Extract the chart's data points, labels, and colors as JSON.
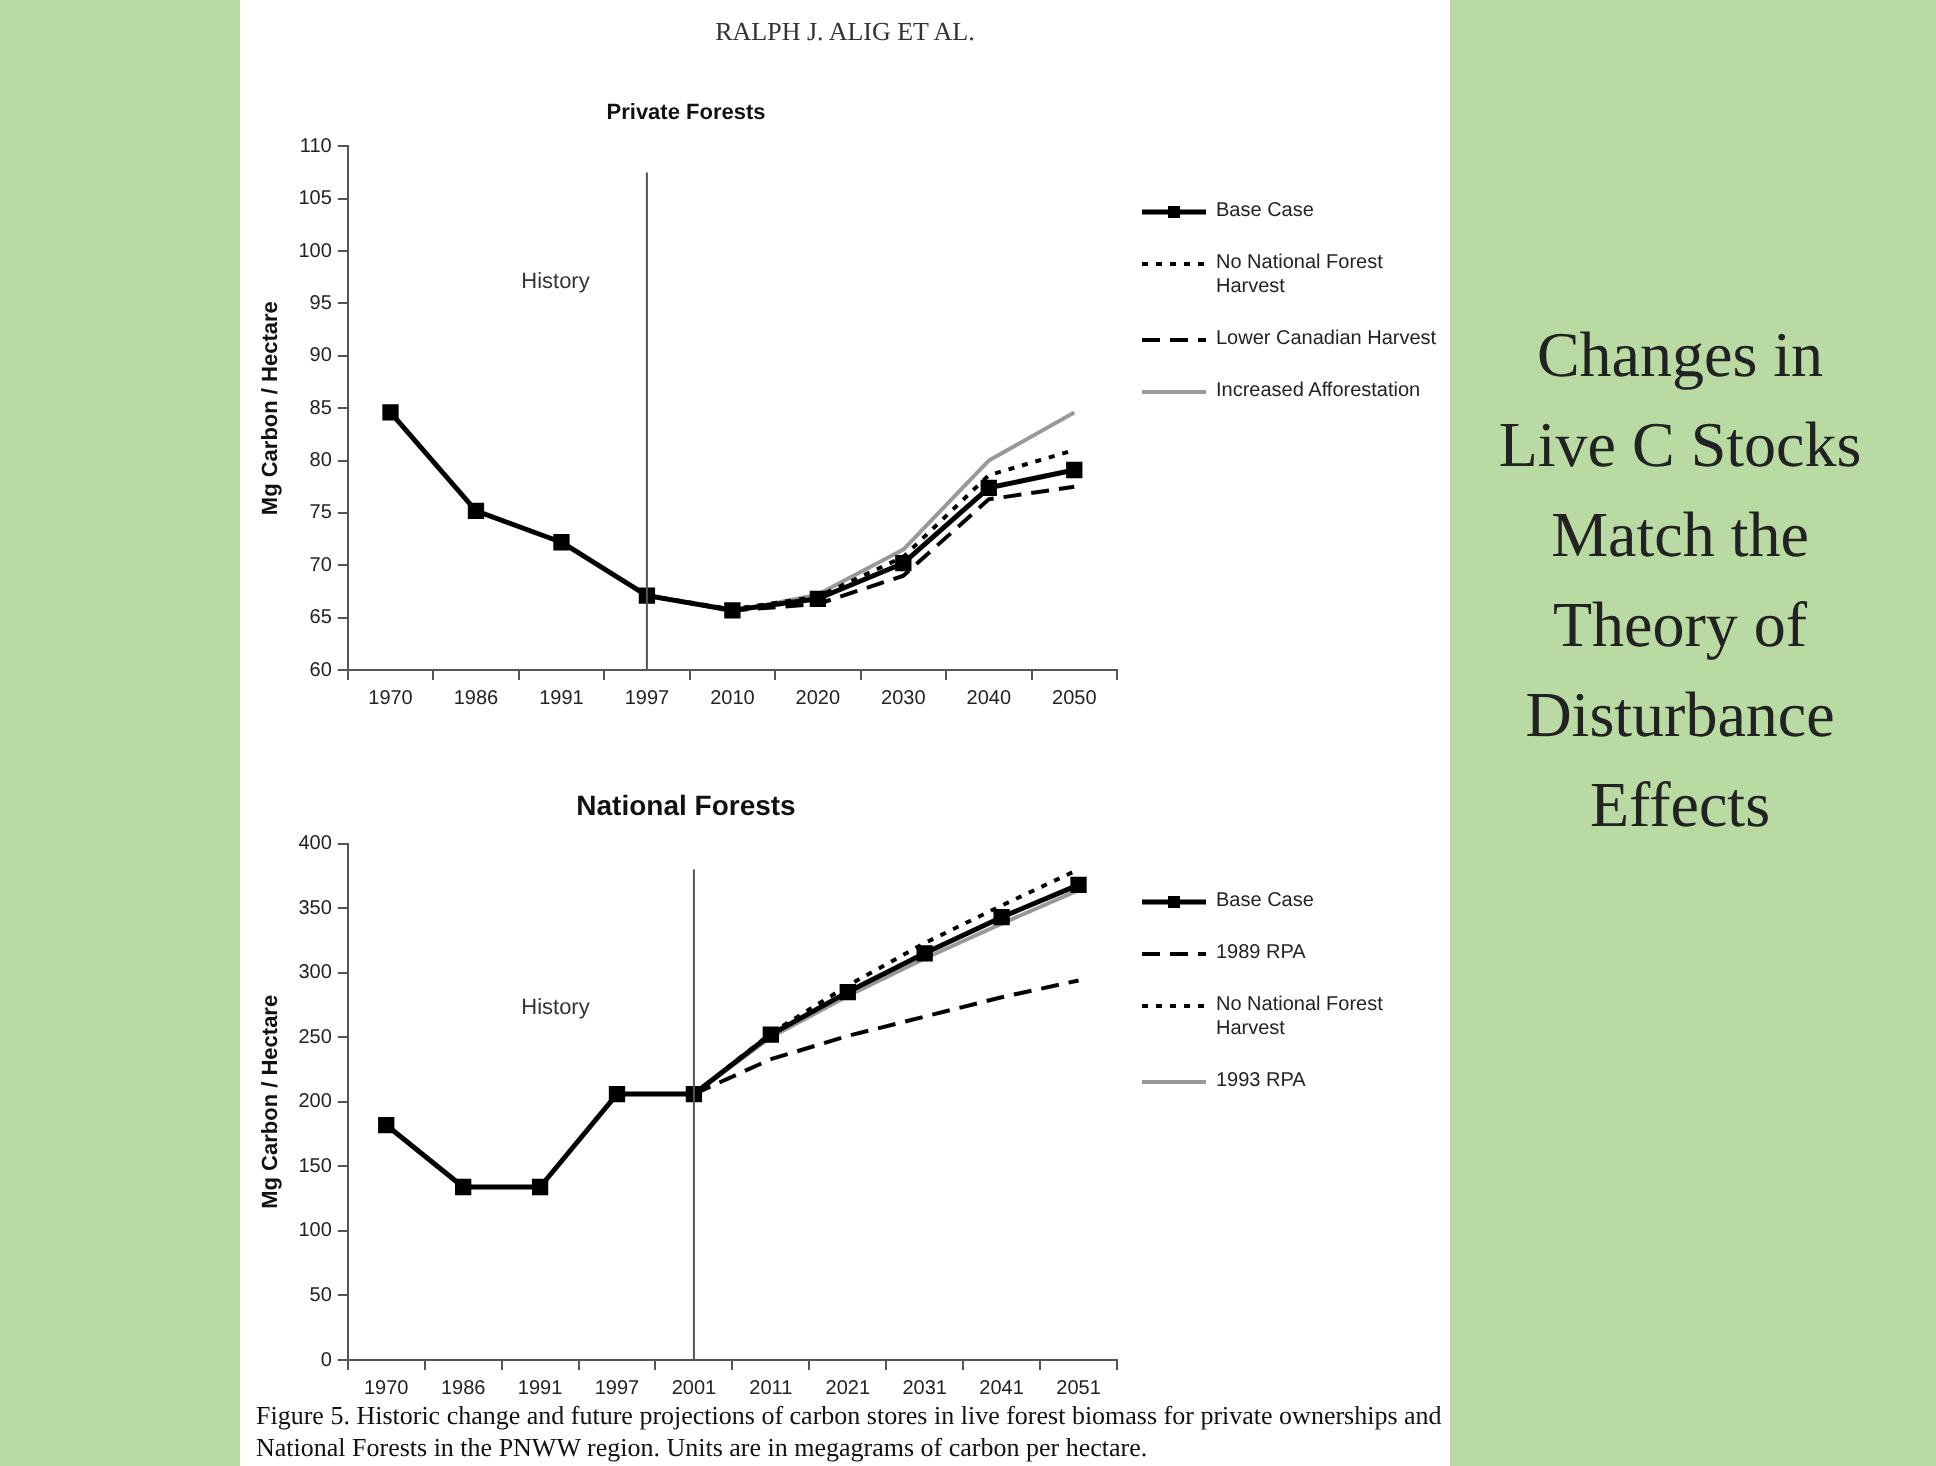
{
  "chart_data": [
    {
      "type": "line",
      "title": "Private Forests",
      "ylabel": "Mg Carbon / Hectare",
      "categories": [
        "1970",
        "1986",
        "1991",
        "1997",
        "2010",
        "2020",
        "2030",
        "2040",
        "2050"
      ],
      "series": [
        {
          "name": "Base Case",
          "color": "#000000",
          "line_style": "solid",
          "marker": "square",
          "values": [
            84.6,
            75.2,
            72.2,
            67.1,
            65.7,
            66.8,
            70.2,
            77.4,
            79.1
          ]
        },
        {
          "name": "No National Forest Harvest",
          "color": "#000000",
          "line_style": "dotted",
          "marker": "none",
          "values": [
            null,
            null,
            null,
            67.1,
            65.8,
            67.0,
            70.8,
            78.6,
            81.0
          ]
        },
        {
          "name": "Lower Canadian Harvest",
          "color": "#000000",
          "line_style": "dashed",
          "marker": "none",
          "values": [
            null,
            null,
            null,
            67.1,
            65.7,
            66.3,
            69.0,
            76.3,
            77.5
          ]
        },
        {
          "name": "Increased Afforestation",
          "color": "#999999",
          "line_style": "solid",
          "marker": "none",
          "values": [
            null,
            null,
            null,
            67.2,
            65.6,
            67.2,
            71.5,
            80.0,
            84.6
          ]
        }
      ],
      "ylim": [
        60,
        110
      ],
      "yticks": [
        60,
        65,
        70,
        75,
        80,
        85,
        90,
        95,
        100,
        105,
        110
      ],
      "grid": false,
      "legend": "right",
      "ref_lines": [
        {
          "axis": "x",
          "value": "1997",
          "color": "#555555"
        }
      ],
      "annotations": [
        "History",
        "RALPH J. ALIG ET AL.",
        "Changes in Live C Stocks Match the Theory of Disturbance Effects"
      ]
    },
    {
      "type": "line",
      "title": "National Forests",
      "ylabel": "Mg Carbon / Hectare",
      "categories": [
        "1970",
        "1986",
        "1991",
        "1997",
        "2001",
        "2011",
        "2021",
        "2031",
        "2041",
        "2051"
      ],
      "series": [
        {
          "name": "Base Case",
          "color": "#000000",
          "line_style": "solid",
          "marker": "square",
          "values": [
            182,
            134,
            134,
            206,
            206,
            252,
            285,
            315,
            343,
            368
          ]
        },
        {
          "name": "1989 RPA",
          "color": "#000000",
          "line_style": "dashed",
          "marker": "none",
          "values": [
            null,
            null,
            null,
            null,
            206,
            233,
            251,
            266,
            281,
            294
          ]
        },
        {
          "name": "No National Forest Harvest",
          "color": "#000000",
          "line_style": "dotted",
          "marker": "none",
          "values": [
            null,
            null,
            null,
            null,
            206,
            253,
            290,
            323,
            352,
            380
          ]
        },
        {
          "name": "1993 RPA",
          "color": "#999999",
          "line_style": "solid",
          "marker": "none",
          "values": [
            null,
            null,
            null,
            null,
            206,
            250,
            282,
            311,
            338,
            364
          ]
        }
      ],
      "ylim": [
        0,
        400
      ],
      "yticks": [
        0,
        50,
        100,
        150,
        200,
        250,
        300,
        350,
        400
      ],
      "grid": false,
      "legend": "right",
      "ref_lines": [
        {
          "axis": "x",
          "value": "2001",
          "color": "#555555"
        }
      ],
      "annotations": [
        "History",
        "Figure 5. Historic change and future projections of carbon stores in live forest biomass for private ownerships and National Forests in the PNWW region. Units are in megagrams of carbon per hectare."
      ]
    }
  ]
}
